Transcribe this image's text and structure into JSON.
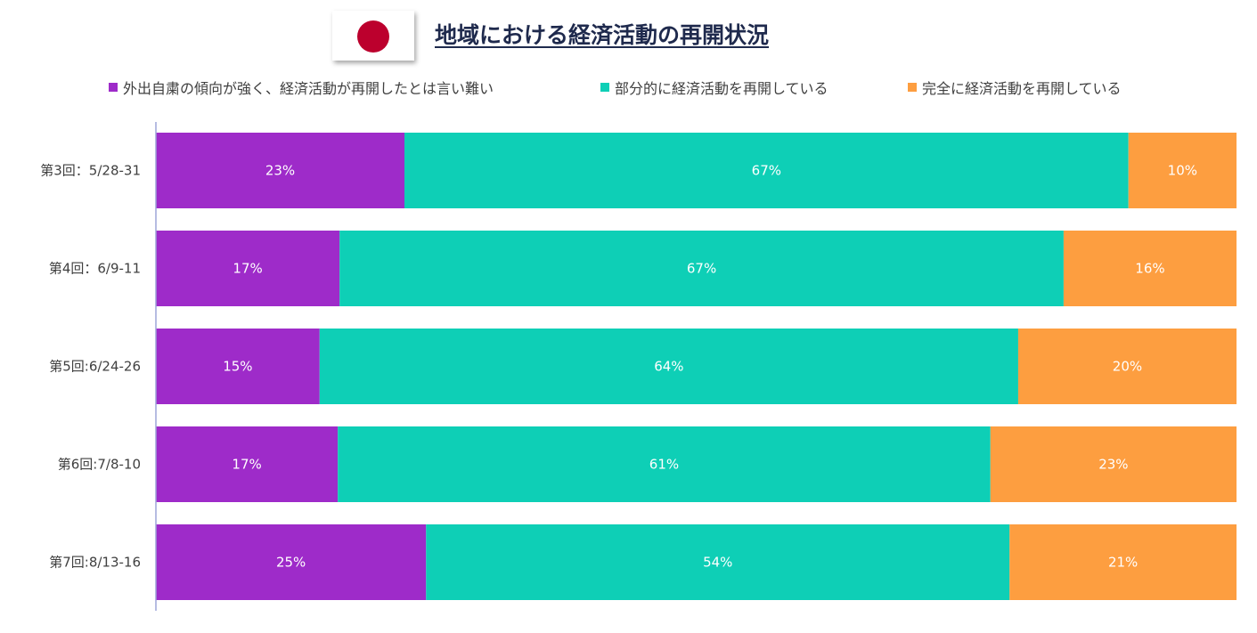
{
  "header": {
    "title": "地域における経済活動の再開状況",
    "flag_icon": "japan-flag-icon",
    "flag_color": "#bc002d"
  },
  "chart_data": {
    "type": "bar",
    "orientation": "horizontal",
    "stacked": "percent",
    "categories": [
      "第3回：5/28-31",
      "第4回：6/9-11",
      "第5回:6/24-26",
      "第6回:7/8-10",
      "第7回:8/13-16"
    ],
    "series": [
      {
        "name": "外出自粛の傾向が強く、経済活動が再開したとは言い難い",
        "color": "#9e2bc9",
        "values": [
          23,
          17,
          15,
          17,
          25
        ],
        "labels": [
          "23%",
          "17%",
          "15%",
          "17%",
          "25%"
        ]
      },
      {
        "name": "部分的に経済活動を再開している",
        "color": "#0ecfb6",
        "values": [
          67,
          67,
          64,
          61,
          54
        ],
        "labels": [
          "67%",
          "67%",
          "64%",
          "61%",
          "54%"
        ]
      },
      {
        "name": "完全に経済活動を再開している",
        "color": "#fd9e40",
        "values": [
          10,
          16,
          20,
          23,
          21
        ],
        "labels": [
          "10%",
          "16%",
          "20%",
          "23%",
          "21%"
        ]
      }
    ],
    "legend_position": "top",
    "grid": false
  }
}
